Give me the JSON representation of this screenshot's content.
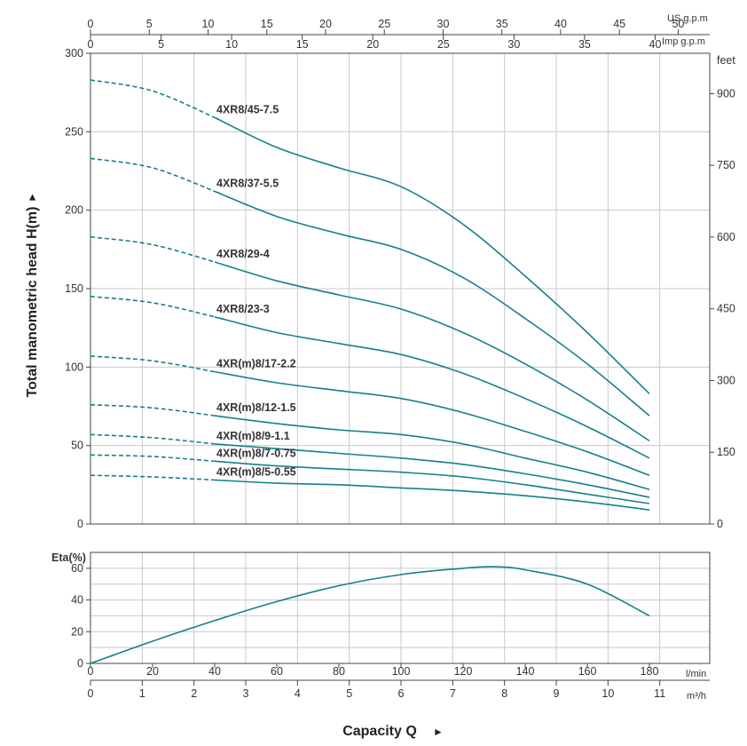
{
  "chart_data": [
    {
      "type": "line",
      "ylabel": "Total manometric head H(m)",
      "ylabel_arrow": "►",
      "ylim": [
        0,
        300
      ],
      "yticks": [
        0,
        50,
        100,
        150,
        200,
        250,
        300
      ],
      "y2_unit": "feet",
      "y2ticks": [
        0,
        150,
        300,
        450,
        600,
        750,
        900
      ],
      "top_axes": [
        {
          "unit": "US g.p.m",
          "ticks": [
            0,
            5,
            10,
            15,
            20,
            25,
            30,
            35,
            40,
            45,
            50
          ]
        },
        {
          "unit": "Imp g.p.m",
          "ticks": [
            0,
            5,
            10,
            15,
            20,
            25,
            30,
            35,
            40
          ]
        }
      ],
      "x_unit": "l/min",
      "xlim": [
        0,
        200
      ],
      "note": "dashed segment from 0 to 40 l/min, solid from 40 to 180 l/min",
      "series": [
        {
          "name": "4XR8/45-7.5",
          "x": [
            0,
            20,
            40,
            60,
            80,
            100,
            120,
            140,
            160,
            180
          ],
          "values": [
            283,
            276,
            259,
            240,
            227,
            215,
            191,
            158,
            122,
            83
          ]
        },
        {
          "name": "4XR8/37-5.5",
          "x": [
            0,
            20,
            40,
            60,
            80,
            100,
            120,
            140,
            160,
            180
          ],
          "values": [
            233,
            227,
            212,
            196,
            185,
            175,
            157,
            131,
            102,
            69
          ]
        },
        {
          "name": "4XR8/29-4",
          "x": [
            0,
            20,
            40,
            60,
            80,
            100,
            120,
            140,
            160,
            180
          ],
          "values": [
            183,
            178,
            167,
            155,
            146,
            137,
            122,
            102,
            79,
            53
          ]
        },
        {
          "name": "4XR8/23-3",
          "x": [
            0,
            20,
            40,
            60,
            80,
            100,
            120,
            140,
            160,
            180
          ],
          "values": [
            145,
            141,
            132,
            122,
            115,
            108,
            96,
            80,
            62,
            42
          ]
        },
        {
          "name": "4XR(m)8/17-2.2",
          "x": [
            0,
            20,
            40,
            60,
            80,
            100,
            120,
            140,
            160,
            180
          ],
          "values": [
            107,
            104,
            97,
            90,
            85,
            80,
            71,
            59,
            46,
            31
          ]
        },
        {
          "name": "4XR(m)8/12-1.5",
          "x": [
            0,
            20,
            40,
            60,
            80,
            100,
            120,
            140,
            160,
            180
          ],
          "values": [
            76,
            74,
            69,
            64,
            60,
            57,
            51,
            42,
            33,
            22
          ]
        },
        {
          "name": "4XR(m)8/9-1.1",
          "x": [
            0,
            20,
            40,
            60,
            80,
            100,
            120,
            140,
            160,
            180
          ],
          "values": [
            57,
            55,
            51,
            48,
            45,
            42,
            38,
            32,
            25,
            17
          ]
        },
        {
          "name": "4XR(m)8/7-0.75",
          "x": [
            0,
            20,
            40,
            60,
            80,
            100,
            120,
            140,
            160,
            180
          ],
          "values": [
            44,
            43,
            40,
            37,
            35,
            33,
            30,
            25,
            19,
            13
          ]
        },
        {
          "name": "4XR(m)8/5-0.55",
          "x": [
            0,
            20,
            40,
            60,
            80,
            100,
            120,
            140,
            160,
            180
          ],
          "values": [
            31,
            30,
            28,
            26,
            25,
            23,
            21,
            18,
            14,
            9
          ]
        }
      ]
    },
    {
      "type": "line",
      "ylabel": "Eta(%)",
      "ylim": [
        0,
        70
      ],
      "yticks": [
        0,
        20,
        40,
        60
      ],
      "xlabel": "Capacity Q",
      "xlabel_arrow": "►",
      "xlim": [
        0,
        200
      ],
      "xticks": [
        0,
        20,
        40,
        60,
        80,
        100,
        120,
        140,
        160,
        180
      ],
      "x_unit": "l/min",
      "x2_unit": "m³/h",
      "x2ticks": [
        0,
        1,
        2,
        3,
        4,
        5,
        6,
        7,
        8,
        9,
        10,
        11
      ],
      "series": [
        {
          "x": [
            0,
            20,
            40,
            60,
            80,
            100,
            120,
            130,
            140,
            160,
            180
          ],
          "values": [
            0,
            14,
            27,
            39,
            49,
            56,
            60,
            61,
            59,
            50,
            30
          ]
        }
      ]
    }
  ],
  "colors": {
    "curve": "#167f8e",
    "grid": "#c8c8c8",
    "frame": "#444444"
  }
}
